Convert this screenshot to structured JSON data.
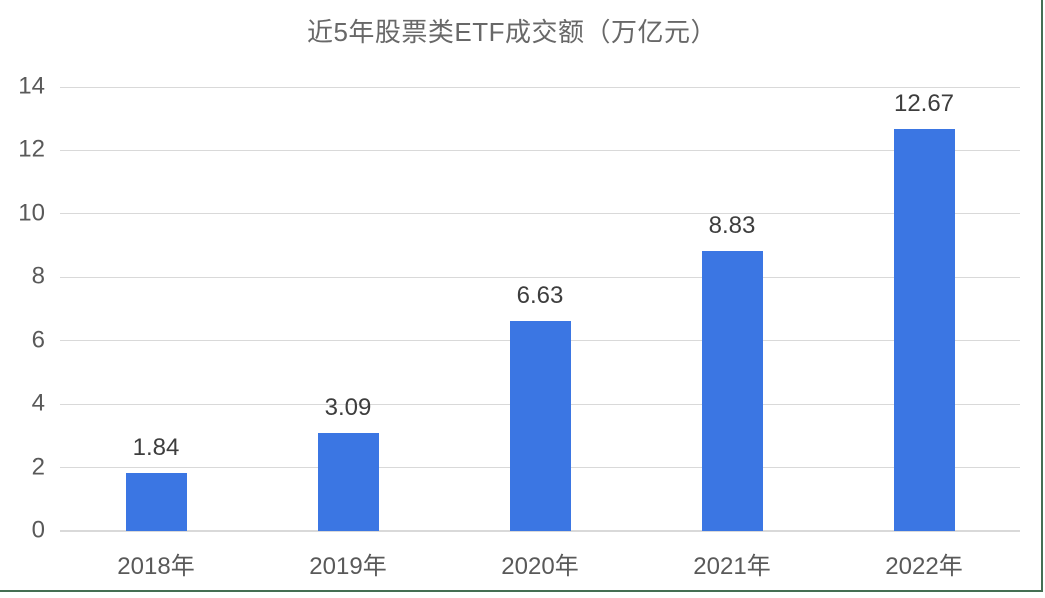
{
  "chart_data": {
    "type": "bar",
    "title": "近5年股票类ETF成交额（万亿元）",
    "categories": [
      "2018年",
      "2019年",
      "2020年",
      "2021年",
      "2022年"
    ],
    "values": [
      1.84,
      3.09,
      6.63,
      8.83,
      12.67
    ],
    "data_labels": [
      "1.84",
      "3.09",
      "6.63",
      "8.83",
      "12.67"
    ],
    "xlabel": "",
    "ylabel": "",
    "ylim": [
      0,
      14
    ],
    "yticks": [
      0,
      2,
      4,
      6,
      8,
      10,
      12,
      14
    ],
    "grid": "horizontal",
    "legend": "none",
    "colors": {
      "bar": "#3B76E3",
      "grid": "#D9D9D9",
      "axis_text": "#595959",
      "data_label": "#3D3D3D",
      "title": "#686868",
      "table_border": "#456E53",
      "background": "#FFFFFF"
    }
  }
}
